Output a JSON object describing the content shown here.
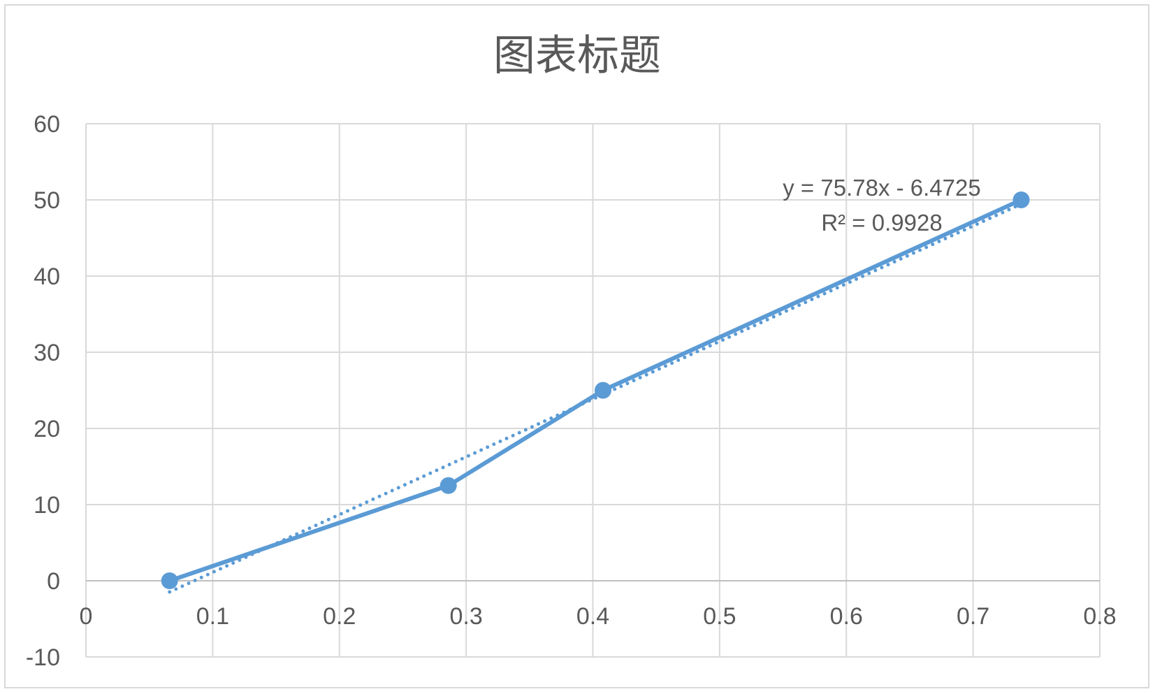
{
  "chart_data": {
    "type": "scatter",
    "title": "图表标题",
    "xlabel": "",
    "ylabel": "",
    "xlim": [
      0,
      0.8
    ],
    "ylim": [
      -10,
      60
    ],
    "xticks": [
      0,
      0.1,
      0.2,
      0.3,
      0.4,
      0.5,
      0.6,
      0.7,
      0.8
    ],
    "yticks": [
      -10,
      0,
      10,
      20,
      30,
      40,
      50,
      60
    ],
    "grid": true,
    "legend": "none",
    "series": [
      {
        "x": [
          0.066,
          0.286,
          0.408,
          0.738
        ],
        "y": [
          0,
          12.5,
          25,
          50
        ],
        "color": "#5b9bd5",
        "line": "solid",
        "markers": true
      }
    ],
    "trendline": {
      "type": "linear",
      "slope": 75.78,
      "intercept": -6.4725,
      "x_range": [
        0.066,
        0.738
      ],
      "style": "dotted",
      "color": "#5b9bd5",
      "equation_label": "y = 75.78x - 6.4725",
      "r2_label": "R² = 0.9928"
    }
  }
}
